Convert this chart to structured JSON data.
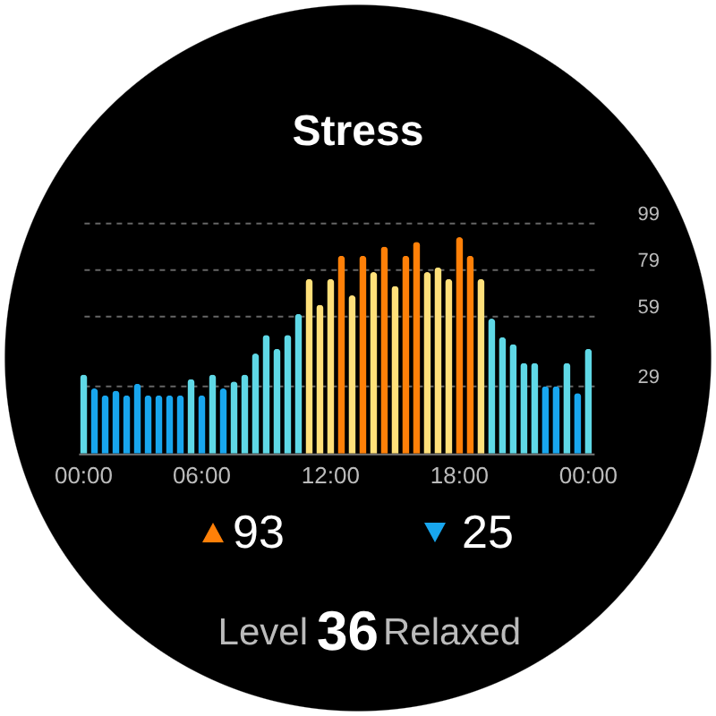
{
  "chart_data": {
    "type": "bar",
    "title": "Stress",
    "categories": [
      "00:00",
      null,
      null,
      null,
      null,
      null,
      null,
      null,
      null,
      null,
      null,
      "06:00",
      null,
      null,
      null,
      null,
      null,
      null,
      null,
      null,
      null,
      null,
      null,
      "12:00",
      null,
      null,
      null,
      null,
      null,
      null,
      null,
      null,
      null,
      null,
      null,
      "18:00",
      null,
      null,
      null,
      null,
      null,
      null,
      null,
      null,
      null,
      null,
      null,
      "00:00"
    ],
    "values": [
      34,
      28,
      25,
      27,
      25,
      30,
      25,
      25,
      25,
      25,
      32,
      25,
      34,
      28,
      31,
      34,
      43,
      51,
      45,
      51,
      60,
      75,
      64,
      75,
      85,
      68,
      85,
      78,
      89,
      72,
      85,
      91,
      78,
      80,
      75,
      93,
      85,
      75,
      58,
      50,
      47,
      39,
      39,
      29,
      29,
      39,
      26,
      45
    ],
    "colors": [
      "#5fd8e6",
      "#18a6ee",
      "#18a6ee",
      "#18a6ee",
      "#18a6ee",
      "#18a6ee",
      "#18a6ee",
      "#18a6ee",
      "#18a6ee",
      "#18a6ee",
      "#5fd8e6",
      "#18a6ee",
      "#5fd8e6",
      "#18a6ee",
      "#5fd8e6",
      "#5fd8e6",
      "#5fd8e6",
      "#5fd8e6",
      "#5fd8e6",
      "#5fd8e6",
      "#5fd8e6",
      "#ffe07a",
      "#ffe07a",
      "#ffe07a",
      "#ff8008",
      "#ffe07a",
      "#ff8008",
      "#ffe07a",
      "#ff8008",
      "#ffe07a",
      "#ff8008",
      "#ff8008",
      "#ffe07a",
      "#ffe07a",
      "#ffe07a",
      "#ff8008",
      "#ff8008",
      "#ffe07a",
      "#5fd8e6",
      "#5fd8e6",
      "#5fd8e6",
      "#5fd8e6",
      "#5fd8e6",
      "#18a6ee",
      "#18a6ee",
      "#5fd8e6",
      "#18a6ee",
      "#5fd8e6"
    ],
    "ylim": [
      0,
      100
    ],
    "yticks": [
      29,
      59,
      79,
      99
    ],
    "grid": "y",
    "annotations": [
      "93",
      "25",
      "Level",
      "36",
      "Relaxed"
    ]
  }
}
